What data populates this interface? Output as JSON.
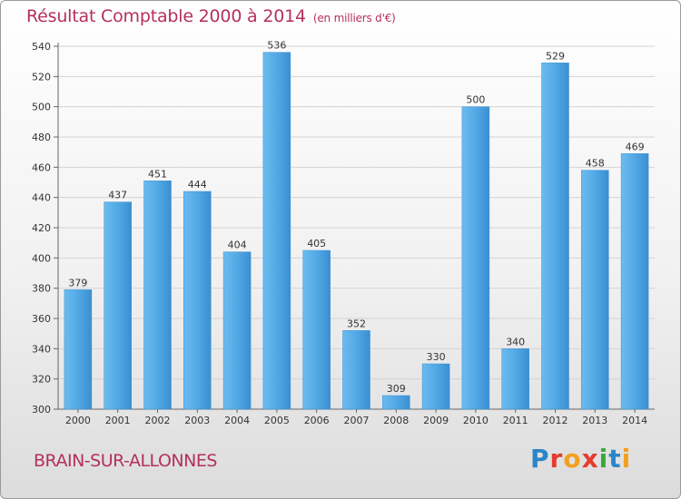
{
  "title": "Résultat Comptable 2000 à 2014",
  "unit": "(en milliers d'€)",
  "commune": "BRAIN-SUR-ALLONNES",
  "brand_letters": [
    "P",
    "r",
    "o",
    "x",
    "i",
    "t",
    "i"
  ],
  "colors": {
    "title": "#b5305d",
    "bar": "#3f98d8",
    "bar_light": "#5cb1ea",
    "bar_dark": "#2f7fc0"
  },
  "chart_data": {
    "type": "bar",
    "title": "Résultat Comptable 2000 à 2014",
    "xlabel": "",
    "ylabel": "en milliers d'€",
    "categories": [
      "2000",
      "2001",
      "2002",
      "2003",
      "2004",
      "2005",
      "2006",
      "2007",
      "2008",
      "2009",
      "2010",
      "2011",
      "2012",
      "2013",
      "2014"
    ],
    "values": [
      379,
      437,
      451,
      444,
      404,
      536,
      405,
      352,
      309,
      330,
      500,
      340,
      529,
      458,
      469
    ],
    "ylim": [
      300,
      540
    ],
    "yticks": [
      300,
      320,
      340,
      360,
      380,
      400,
      420,
      440,
      460,
      480,
      500,
      520,
      540
    ],
    "grid": true,
    "legend": "none"
  }
}
